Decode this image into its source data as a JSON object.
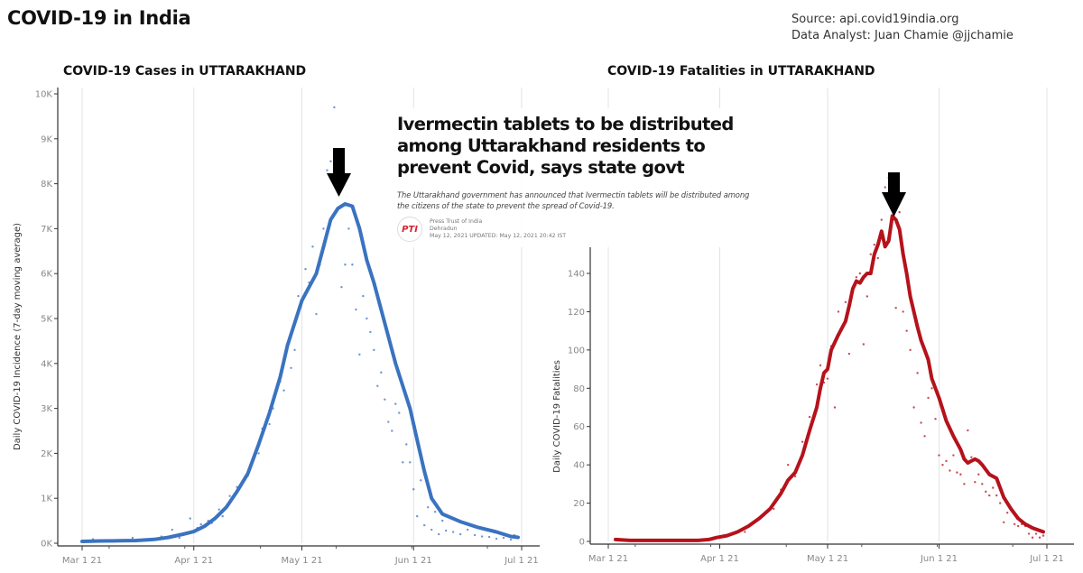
{
  "header": {
    "title": "COVID-19 in India",
    "source_line": "Source: api.covid19india.org",
    "analyst_line": "Data Analyst:  Juan Chamie @jjchamie"
  },
  "news": {
    "headline": "Ivermectin tablets to be distributed among Uttarakhand residents to prevent Covid, says state govt",
    "summary": "The Uttarakhand government has announced that Ivermectin tablets will be distributed among the citizens of the state to prevent the spread of Covid-19.",
    "logo_text": "PTI",
    "agency": "Press Trust of India",
    "location": "Dehradun",
    "date": "May 12, 2021 UPDATED: May 12, 2021 20:42 IST"
  },
  "chart_data": [
    {
      "type": "line",
      "title": "COVID-19 Cases in UTTARAKHAND",
      "xlabel": "",
      "ylabel": "Daily COVID-19 Incidence (7-day moving average)",
      "x_unit": "days since Mar 1 2021",
      "xlim": [
        -7,
        126
      ],
      "ylim": [
        0,
        10000
      ],
      "x_ticks": [
        {
          "day": 0,
          "label": "Mar 1 21"
        },
        {
          "day": 31,
          "label": "Apr 1 21"
        },
        {
          "day": 61,
          "label": "May 1 21"
        },
        {
          "day": 92,
          "label": "Jun 1 21"
        },
        {
          "day": 122,
          "label": "Jul 1 21"
        }
      ],
      "y_ticks": [
        {
          "value": 0,
          "label": "0K"
        },
        {
          "value": 1000,
          "label": "1K"
        },
        {
          "value": 2000,
          "label": "2K"
        },
        {
          "value": 3000,
          "label": "3K"
        },
        {
          "value": 4000,
          "label": "4K"
        },
        {
          "value": 5000,
          "label": "5K"
        },
        {
          "value": 6000,
          "label": "6K"
        },
        {
          "value": 7000,
          "label": "7K"
        },
        {
          "value": 8000,
          "label": "8K"
        },
        {
          "value": 9000,
          "label": "9K"
        },
        {
          "value": 10000,
          "label": "10K"
        }
      ],
      "grid": "vertical",
      "color": "#3a73c0",
      "series": [
        {
          "name": "7-day moving average",
          "x": [
            0,
            5,
            10,
            15,
            20,
            24,
            28,
            31,
            34,
            37,
            40,
            43,
            46,
            49,
            52,
            55,
            57,
            59,
            61,
            63,
            65,
            67,
            69,
            71,
            73,
            75,
            77,
            79,
            81,
            83,
            85,
            87,
            89,
            91,
            93,
            95,
            97,
            100,
            105,
            110,
            115,
            119,
            121
          ],
          "values": [
            40,
            50,
            55,
            60,
            85,
            130,
            200,
            260,
            380,
            560,
            800,
            1150,
            1550,
            2200,
            2900,
            3700,
            4400,
            4900,
            5400,
            5700,
            6000,
            6600,
            7200,
            7450,
            7550,
            7500,
            7000,
            6300,
            5800,
            5200,
            4600,
            4000,
            3500,
            3000,
            2300,
            1600,
            1000,
            650,
            480,
            350,
            250,
            150,
            130
          ]
        },
        {
          "name": "daily cases",
          "x": [
            3,
            8,
            14,
            18,
            22,
            25,
            27,
            29,
            30,
            32,
            33,
            35,
            36,
            38,
            39,
            41,
            43,
            44,
            46,
            47,
            49,
            50,
            52,
            53,
            55,
            56,
            58,
            59,
            60,
            62,
            63,
            64,
            65,
            66,
            67,
            68,
            69,
            70,
            71,
            72,
            73,
            74,
            75,
            76,
            77,
            78,
            79,
            80,
            81,
            82,
            83,
            84,
            85,
            86,
            87,
            88,
            89,
            90,
            91,
            92,
            93,
            94,
            95,
            96,
            97,
            98,
            99,
            100,
            101,
            103,
            105,
            107,
            109,
            111,
            113,
            115,
            117,
            119,
            120
          ],
          "values": [
            90,
            60,
            120,
            80,
            150,
            300,
            120,
            220,
            550,
            340,
            420,
            500,
            450,
            750,
            600,
            1050,
            1250,
            1250,
            1500,
            1750,
            2000,
            2550,
            2650,
            3000,
            3600,
            3400,
            3900,
            4300,
            5500,
            6100,
            5800,
            6600,
            5100,
            6200,
            7000,
            8300,
            8500,
            9700,
            7800,
            5700,
            6200,
            7000,
            6200,
            5200,
            4200,
            5500,
            5000,
            4700,
            4300,
            3500,
            3800,
            3200,
            2700,
            2500,
            3100,
            2900,
            1800,
            2200,
            1800,
            1200,
            600,
            1400,
            400,
            800,
            300,
            700,
            200,
            500,
            280,
            250,
            200,
            300,
            180,
            150,
            140,
            100,
            120,
            80,
            180
          ]
        }
      ]
    },
    {
      "type": "line",
      "title": "COVID-19 Fatalities in UTTARAKHAND",
      "xlabel": "",
      "ylabel": "Daily COVID-19 Fatalities",
      "x_unit": "days since Mar 1 2021",
      "xlim": [
        -5,
        126
      ],
      "ylim": [
        0,
        155
      ],
      "x_ticks": [
        {
          "day": 0,
          "label": "Mar 1 21"
        },
        {
          "day": 31,
          "label": "Apr 1 21"
        },
        {
          "day": 61,
          "label": "May 1 21"
        },
        {
          "day": 92,
          "label": "Jun 1 21"
        },
        {
          "day": 122,
          "label": "Jul 1 21"
        }
      ],
      "y_ticks": [
        {
          "value": 0,
          "label": "0"
        },
        {
          "value": 20,
          "label": "20"
        },
        {
          "value": 40,
          "label": "40"
        },
        {
          "value": 60,
          "label": "60"
        },
        {
          "value": 80,
          "label": "80"
        },
        {
          "value": 100,
          "label": "100"
        },
        {
          "value": 120,
          "label": "120"
        },
        {
          "value": 140,
          "label": "140"
        }
      ],
      "grid": "vertical",
      "color": "#b5121b",
      "series": [
        {
          "name": "7-day moving average",
          "x": [
            2,
            6,
            10,
            15,
            20,
            25,
            28,
            30,
            33,
            36,
            39,
            42,
            45,
            48,
            50,
            52,
            54,
            56,
            58,
            59,
            60,
            61,
            62,
            64,
            66,
            67,
            68,
            69,
            70,
            71,
            72,
            73,
            74,
            75,
            76,
            77,
            78,
            79,
            80,
            81,
            82,
            83,
            84,
            85,
            86,
            87,
            88,
            89,
            90,
            92,
            94,
            96,
            98,
            99,
            100,
            101,
            102,
            103,
            104,
            106,
            108,
            110,
            112,
            114,
            116,
            118,
            121
          ],
          "values": [
            1,
            0.5,
            0.5,
            0.5,
            0.5,
            0.5,
            1,
            2,
            3,
            5,
            8,
            12,
            17,
            25,
            32,
            36,
            45,
            58,
            70,
            80,
            88,
            90,
            100,
            108,
            115,
            123,
            132,
            136,
            135,
            138,
            140,
            140,
            150,
            155,
            162,
            154,
            157,
            170,
            168,
            163,
            150,
            140,
            128,
            120,
            112,
            105,
            100,
            95,
            85,
            75,
            63,
            55,
            48,
            43,
            41,
            42,
            43,
            42,
            40,
            35,
            33,
            23,
            17,
            12,
            9,
            7,
            5
          ]
        },
        {
          "name": "daily fatalities",
          "x": [
            33,
            36,
            38,
            40,
            42,
            44,
            46,
            48,
            50,
            52,
            54,
            56,
            57,
            58,
            59,
            60,
            61,
            62,
            63,
            64,
            65,
            66,
            67,
            68,
            69,
            70,
            71,
            72,
            73,
            74,
            75,
            76,
            77,
            78,
            79,
            80,
            81,
            82,
            83,
            84,
            85,
            86,
            87,
            88,
            89,
            90,
            91,
            92,
            93,
            94,
            95,
            96,
            97,
            98,
            99,
            100,
            101,
            102,
            103,
            104,
            105,
            106,
            107,
            108,
            109,
            110,
            111,
            112,
            113,
            114,
            115,
            116,
            117,
            118,
            119,
            120,
            121
          ],
          "values": [
            3,
            5,
            5,
            9,
            12,
            15,
            17,
            27,
            40,
            34,
            52,
            65,
            65,
            82,
            92,
            83,
            85,
            102,
            70,
            120,
            112,
            125,
            98,
            130,
            138,
            140,
            103,
            128,
            150,
            155,
            148,
            168,
            185,
            190,
            188,
            122,
            172,
            120,
            110,
            100,
            70,
            88,
            62,
            55,
            75,
            80,
            64,
            45,
            40,
            42,
            37,
            45,
            36,
            35,
            30,
            58,
            44,
            31,
            35,
            30,
            26,
            24,
            28,
            24,
            20,
            10,
            15,
            17,
            9,
            8,
            9,
            8,
            4,
            2,
            4,
            2,
            3
          ]
        }
      ]
    }
  ]
}
